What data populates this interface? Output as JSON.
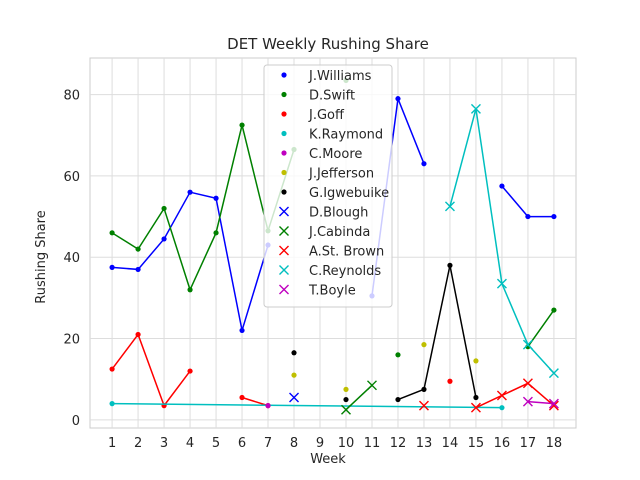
{
  "chart_data": {
    "type": "line",
    "title": "DET Weekly Rushing Share",
    "xlabel": "Week",
    "ylabel": "Rushing Share",
    "xlim": [
      0.15,
      18.85
    ],
    "ylim": [
      -2,
      89
    ],
    "xticks": [
      1,
      2,
      3,
      4,
      5,
      6,
      7,
      8,
      9,
      10,
      11,
      12,
      13,
      14,
      15,
      16,
      17,
      18
    ],
    "yticks": [
      0,
      20,
      40,
      60,
      80
    ],
    "grid": true,
    "legend_position": "top-center",
    "series": [
      {
        "name": "J.Williams",
        "color": "#0000ff",
        "marker": "dot",
        "points": [
          [
            1,
            37.5
          ],
          [
            2,
            37
          ],
          [
            3,
            44.5
          ],
          [
            4,
            56
          ],
          [
            5,
            54.5
          ],
          [
            6,
            22
          ],
          [
            7,
            43
          ],
          [
            8,
            null
          ],
          [
            9,
            null
          ],
          [
            10,
            null
          ],
          [
            11,
            30.5
          ],
          [
            12,
            79
          ],
          [
            13,
            63
          ],
          [
            14,
            null
          ],
          [
            15,
            null
          ],
          [
            16,
            57.5
          ],
          [
            17,
            50
          ],
          [
            18,
            50
          ]
        ]
      },
      {
        "name": "D.Swift",
        "color": "#008000",
        "marker": "dot",
        "points": [
          [
            1,
            46
          ],
          [
            2,
            42
          ],
          [
            3,
            52
          ],
          [
            4,
            32
          ],
          [
            5,
            46
          ],
          [
            6,
            72.5
          ],
          [
            7,
            46.5
          ],
          [
            8,
            66.5
          ],
          [
            9,
            null
          ],
          [
            10,
            83.5
          ],
          [
            11,
            null
          ],
          [
            12,
            16
          ],
          [
            13,
            null
          ],
          [
            14,
            null
          ],
          [
            15,
            null
          ],
          [
            16,
            null
          ],
          [
            17,
            18
          ],
          [
            18,
            27
          ]
        ]
      },
      {
        "name": "J.Goff",
        "color": "#ff0000",
        "marker": "dot",
        "points": [
          [
            1,
            12.5
          ],
          [
            2,
            21
          ],
          [
            3,
            3.5
          ],
          [
            4,
            12
          ],
          [
            5,
            null
          ],
          [
            6,
            5.5
          ],
          [
            7,
            3.5
          ],
          [
            8,
            null
          ],
          [
            9,
            null
          ],
          [
            10,
            null
          ],
          [
            11,
            null
          ],
          [
            12,
            null
          ],
          [
            13,
            null
          ],
          [
            14,
            9.5
          ],
          [
            15,
            null
          ],
          [
            16,
            null
          ],
          [
            17,
            null
          ],
          [
            18,
            null
          ]
        ]
      },
      {
        "name": "K.Raymond",
        "color": "#00bfbf",
        "marker": "dot",
        "points": [
          [
            1,
            4
          ],
          [
            16,
            3
          ]
        ]
      },
      {
        "name": "C.Moore",
        "color": "#bf00bf",
        "marker": "dot",
        "points": [
          [
            7,
            3.5
          ]
        ]
      },
      {
        "name": "J.Jefferson",
        "color": "#bfbf00",
        "marker": "dot",
        "points": [
          [
            8,
            11
          ],
          [
            9,
            null
          ],
          [
            10,
            7.5
          ],
          [
            11,
            null
          ],
          [
            12,
            null
          ],
          [
            13,
            18.5
          ],
          [
            14,
            null
          ],
          [
            15,
            14.5
          ]
        ]
      },
      {
        "name": "G.Igwebuike",
        "color": "#000000",
        "marker": "dot",
        "points": [
          [
            8,
            16.5
          ],
          [
            9,
            null
          ],
          [
            10,
            5
          ],
          [
            11,
            null
          ],
          [
            12,
            5
          ],
          [
            13,
            7.5
          ],
          [
            14,
            38
          ],
          [
            15,
            5.5
          ]
        ]
      },
      {
        "name": "D.Blough",
        "color": "#0000ff",
        "marker": "x",
        "points": [
          [
            8,
            5.5
          ]
        ]
      },
      {
        "name": "J.Cabinda",
        "color": "#008000",
        "marker": "x",
        "points": [
          [
            10,
            2.5
          ],
          [
            11,
            8.5
          ]
        ]
      },
      {
        "name": "A.St. Brown",
        "color": "#ff0000",
        "marker": "x",
        "points": [
          [
            13,
            3.5
          ],
          [
            14,
            null
          ],
          [
            15,
            3
          ],
          [
            16,
            6
          ],
          [
            17,
            9
          ],
          [
            18,
            3.5
          ]
        ]
      },
      {
        "name": "C.Reynolds",
        "color": "#00bfbf",
        "marker": "x",
        "points": [
          [
            14,
            52.5
          ],
          [
            15,
            76.5
          ],
          [
            16,
            33.5
          ],
          [
            17,
            18.5
          ],
          [
            18,
            11.5
          ]
        ]
      },
      {
        "name": "T.Boyle",
        "color": "#bf00bf",
        "marker": "x",
        "points": [
          [
            17,
            4.5
          ],
          [
            18,
            4
          ]
        ]
      }
    ]
  }
}
